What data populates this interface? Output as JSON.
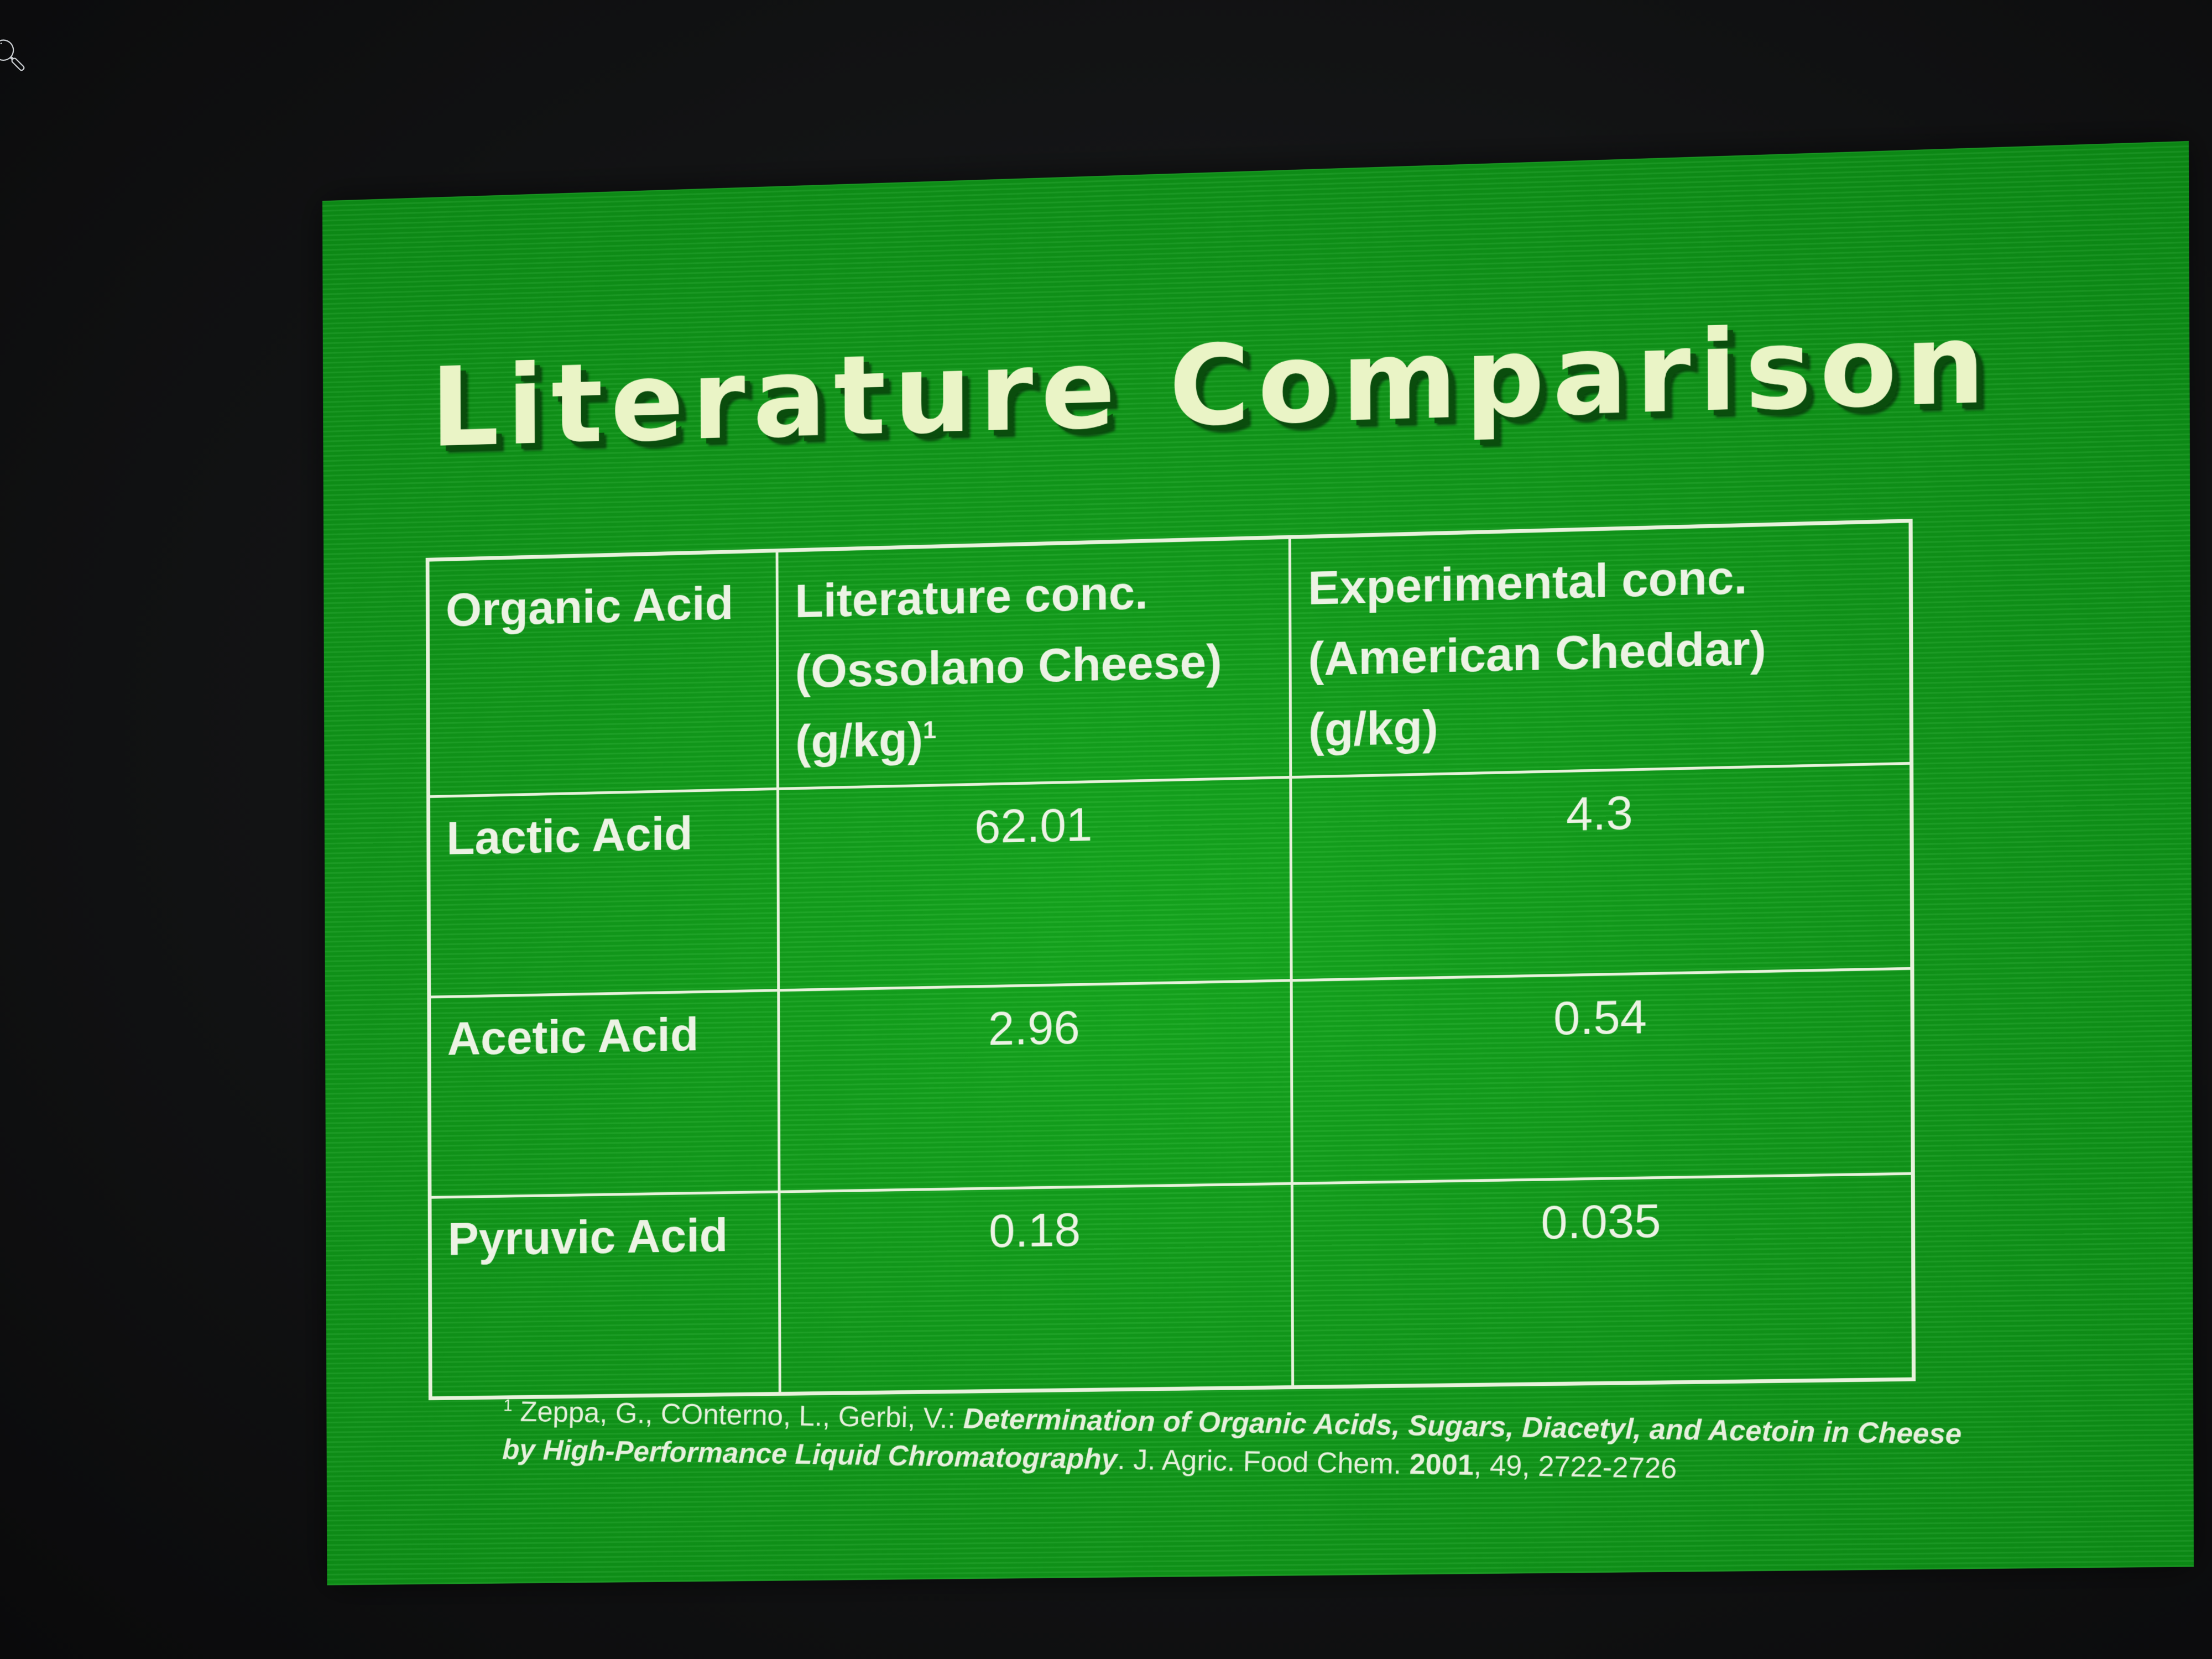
{
  "slide": {
    "title": "Literature Comparison"
  },
  "table": {
    "headers": [
      {
        "lines": [
          "Organic Acid"
        ]
      },
      {
        "lines": [
          "Literature conc.",
          "(Ossolano Cheese)",
          "(g/kg)"
        ],
        "footnote": "1"
      },
      {
        "lines": [
          "Experimental conc.",
          "(American Cheddar)",
          "(g/kg)"
        ]
      }
    ],
    "rows": [
      {
        "acid": "Lactic Acid",
        "literature": "62.01",
        "experimental": "4.3"
      },
      {
        "acid": "Acetic Acid",
        "literature": "2.96",
        "experimental": "0.54"
      },
      {
        "acid": "Pyruvic Acid",
        "literature": "0.18",
        "experimental": "0.035"
      }
    ]
  },
  "citation": {
    "marker": "1",
    "authors": "Zeppa, G., COnterno, L., Gerbi, V.:",
    "title": "Determination of Organic Acids, Sugars, Diacetyl, and Acetoin in Cheese by High-Performance Liquid Chromatography",
    "journal": ". J. Agric. Food Chem.",
    "year": "2001",
    "volume_pages": ", 49, 2722-2726"
  },
  "colors": {
    "slide_green": "#109a18",
    "title_text": "#eaf4c6",
    "title_shadow": "#0a4d0d",
    "table_lines": "#e8f2dc"
  },
  "icons": {
    "corner": "search-icon"
  }
}
